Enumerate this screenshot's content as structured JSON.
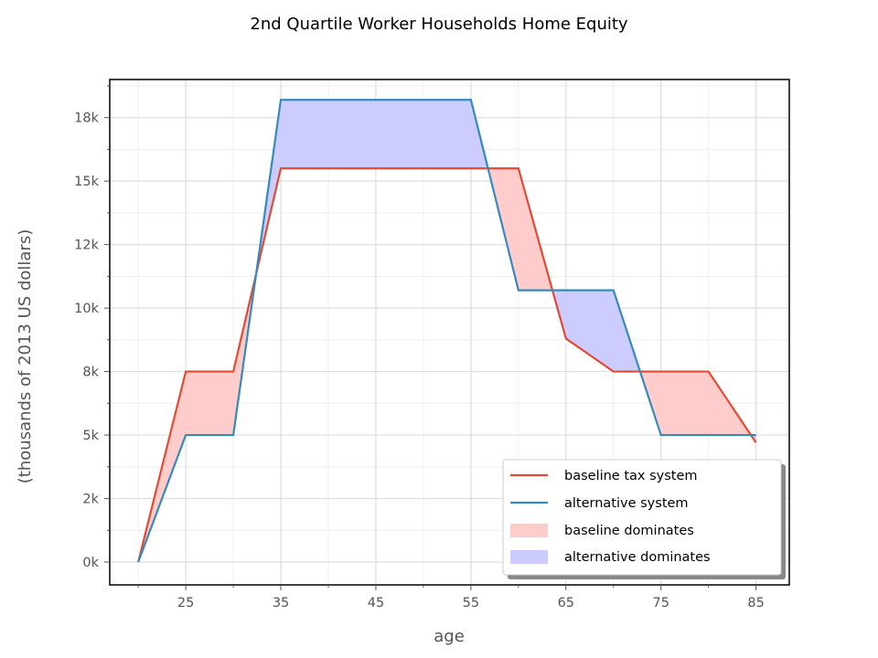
{
  "chart_data": {
    "type": "line",
    "title": "2nd Quartile Worker Households Home Equity",
    "xlabel": "age",
    "ylabel": "(thousands of 2013 US dollars)",
    "x": [
      20,
      25,
      30,
      35,
      40,
      45,
      50,
      55,
      60,
      65,
      70,
      75,
      80,
      85
    ],
    "xlim": [
      17,
      88.5
    ],
    "ylim": [
      -900,
      19000
    ],
    "xticks": [
      25,
      35,
      45,
      55,
      65,
      75,
      85
    ],
    "xtick_labels": [
      "25",
      "35",
      "45",
      "55",
      "65",
      "75",
      "85"
    ],
    "yticks": [
      0,
      2500,
      5000,
      7500,
      10000,
      12500,
      15000,
      17500
    ],
    "ytick_labels": [
      "0k",
      "2k",
      "5k",
      "8k",
      "10k",
      "12k",
      "15k",
      "18k"
    ],
    "grid": true,
    "legend_position": "lower-right",
    "series": [
      {
        "name": "baseline tax system",
        "color": "#e24a33",
        "values": [
          0,
          7500,
          7500,
          15500,
          15500,
          15500,
          15500,
          15500,
          15500,
          8800,
          7500,
          7500,
          7500,
          4700
        ]
      },
      {
        "name": "alternative system",
        "color": "#348abd",
        "values": [
          0,
          5000,
          5000,
          18200,
          18200,
          18200,
          18200,
          18200,
          10700,
          10700,
          10700,
          5000,
          5000,
          5000
        ]
      }
    ],
    "fills": [
      {
        "name": "baseline dominates",
        "color": "#ffcccc"
      },
      {
        "name": "alternative dominates",
        "color": "#ccccff"
      }
    ]
  }
}
